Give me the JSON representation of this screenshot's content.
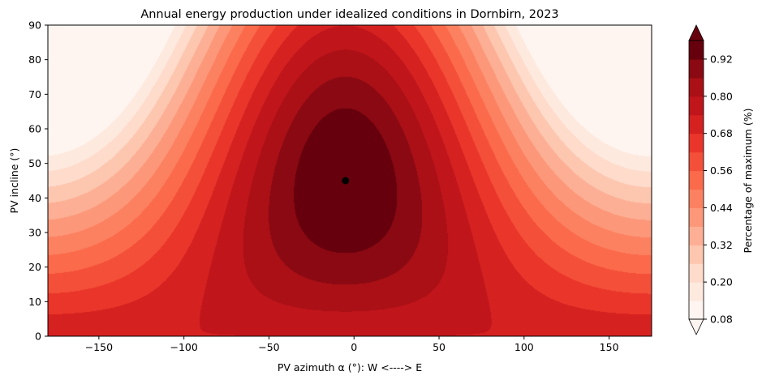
{
  "chart_data": {
    "type": "contourf",
    "title": "Annual energy production under idealized conditions in Dornbirn, 2023",
    "xlabel": "PV azimuth α (°): W <----> E",
    "ylabel": "PV incline (°)",
    "xlim": [
      -180,
      175
    ],
    "ylim": [
      0,
      90
    ],
    "x_ticks": [
      -150,
      -100,
      -50,
      0,
      50,
      100,
      150
    ],
    "x_tick_labels": [
      "−150",
      "−100",
      "−50",
      "0",
      "50",
      "100",
      "150"
    ],
    "y_ticks": [
      0,
      10,
      20,
      30,
      40,
      50,
      60,
      70,
      80,
      90
    ],
    "y_tick_labels": [
      "0",
      "10",
      "20",
      "30",
      "40",
      "50",
      "60",
      "70",
      "80",
      "90"
    ],
    "colorbar": {
      "label": "Percentage of maximum (%)",
      "levels": [
        0.08,
        0.14,
        0.2,
        0.26,
        0.32,
        0.38,
        0.44,
        0.5,
        0.56,
        0.62,
        0.68,
        0.74,
        0.8,
        0.86,
        0.92,
        0.98
      ],
      "tick_values": [
        0.08,
        0.2,
        0.32,
        0.44,
        0.56,
        0.68,
        0.8,
        0.92
      ],
      "tick_labels": [
        "0.08",
        "0.20",
        "0.32",
        "0.44",
        "0.56",
        "0.68",
        "0.80",
        "0.92"
      ],
      "extend": "both",
      "colormap": "Reds",
      "color_stops": [
        "#fff5f0",
        "#fee0d2",
        "#fcbba1",
        "#fc9272",
        "#fb6a4a",
        "#ef3b2c",
        "#cb181d",
        "#a50f15",
        "#67000d"
      ]
    },
    "maximum_point": {
      "x": -5,
      "y": 45
    },
    "grid": false,
    "legend": "none"
  }
}
